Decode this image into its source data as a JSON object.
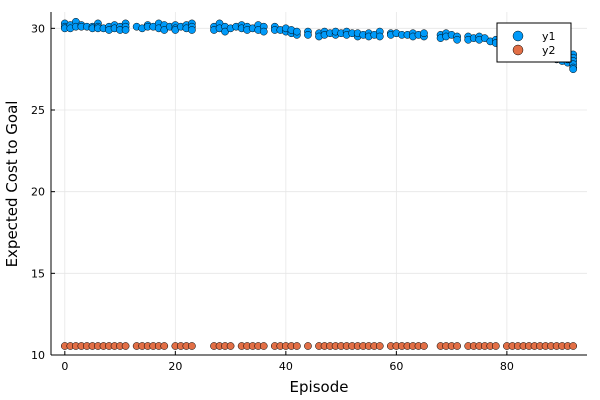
{
  "chart_data": {
    "type": "scatter",
    "xlabel": "Episode",
    "ylabel": "Expected Cost to Goal",
    "xlim": [
      -2.5,
      94.5
    ],
    "ylim": [
      10,
      31
    ],
    "xticks": [
      0,
      20,
      40,
      60,
      80
    ],
    "yticks": [
      10,
      15,
      20,
      25,
      30
    ],
    "grid": true,
    "legend_position": "top-right",
    "series": [
      {
        "name": "y1",
        "color": "#009af9",
        "points": [
          [
            0,
            30.3
          ],
          [
            0,
            30.1
          ],
          [
            0,
            30.0
          ],
          [
            1,
            30.2
          ],
          [
            1,
            30.0
          ],
          [
            2,
            30.4
          ],
          [
            2,
            30.1
          ],
          [
            3,
            30.2
          ],
          [
            3,
            30.1
          ],
          [
            4,
            30.1
          ],
          [
            5,
            30.1
          ],
          [
            5,
            30.0
          ],
          [
            6,
            30.3
          ],
          [
            6,
            30.1
          ],
          [
            6,
            30.0
          ],
          [
            7,
            30.0
          ],
          [
            8,
            30.1
          ],
          [
            8,
            29.9
          ],
          [
            9,
            30.2
          ],
          [
            9,
            30.0
          ],
          [
            10,
            30.1
          ],
          [
            10,
            29.9
          ],
          [
            11,
            30.3
          ],
          [
            11,
            30.1
          ],
          [
            11,
            29.9
          ],
          [
            13,
            30.1
          ],
          [
            14,
            30.0
          ],
          [
            15,
            30.2
          ],
          [
            15,
            30.1
          ],
          [
            16,
            30.1
          ],
          [
            17,
            30.3
          ],
          [
            17,
            30.0
          ],
          [
            18,
            30.2
          ],
          [
            18,
            29.9
          ],
          [
            19,
            30.1
          ],
          [
            20,
            30.2
          ],
          [
            20,
            30.0
          ],
          [
            20,
            29.9
          ],
          [
            21,
            30.1
          ],
          [
            22,
            30.2
          ],
          [
            22,
            30.0
          ],
          [
            23,
            30.3
          ],
          [
            23,
            30.1
          ],
          [
            23,
            29.9
          ],
          [
            27,
            30.1
          ],
          [
            27,
            29.9
          ],
          [
            28,
            30.3
          ],
          [
            28,
            30.0
          ],
          [
            29,
            30.1
          ],
          [
            29,
            29.8
          ],
          [
            30,
            30.0
          ],
          [
            31,
            30.1
          ],
          [
            32,
            30.2
          ],
          [
            32,
            30.0
          ],
          [
            33,
            30.1
          ],
          [
            33,
            29.9
          ],
          [
            34,
            30.0
          ],
          [
            35,
            30.2
          ],
          [
            35,
            29.9
          ],
          [
            36,
            30.1
          ],
          [
            36,
            29.8
          ],
          [
            38,
            30.1
          ],
          [
            38,
            29.9
          ],
          [
            39,
            29.9
          ],
          [
            40,
            29.8
          ],
          [
            40,
            30.0
          ],
          [
            41,
            29.7
          ],
          [
            41,
            29.9
          ],
          [
            42,
            29.6
          ],
          [
            42,
            29.8
          ],
          [
            44,
            29.8
          ],
          [
            44,
            29.6
          ],
          [
            46,
            29.7
          ],
          [
            46,
            29.5
          ],
          [
            47,
            29.8
          ],
          [
            47,
            29.6
          ],
          [
            48,
            29.7
          ],
          [
            49,
            29.6
          ],
          [
            49,
            29.8
          ],
          [
            50,
            29.7
          ],
          [
            51,
            29.8
          ],
          [
            51,
            29.6
          ],
          [
            52,
            29.7
          ],
          [
            53,
            29.5
          ],
          [
            53,
            29.7
          ],
          [
            54,
            29.6
          ],
          [
            55,
            29.7
          ],
          [
            55,
            29.5
          ],
          [
            56,
            29.6
          ],
          [
            57,
            29.8
          ],
          [
            57,
            29.5
          ],
          [
            59,
            29.7
          ],
          [
            59,
            29.6
          ],
          [
            60,
            29.7
          ],
          [
            61,
            29.6
          ],
          [
            62,
            29.6
          ],
          [
            63,
            29.7
          ],
          [
            63,
            29.5
          ],
          [
            64,
            29.6
          ],
          [
            65,
            29.5
          ],
          [
            65,
            29.7
          ],
          [
            68,
            29.6
          ],
          [
            68,
            29.4
          ],
          [
            69,
            29.7
          ],
          [
            69,
            29.5
          ],
          [
            70,
            29.6
          ],
          [
            71,
            29.5
          ],
          [
            71,
            29.3
          ],
          [
            73,
            29.5
          ],
          [
            73,
            29.3
          ],
          [
            74,
            29.4
          ],
          [
            75,
            29.5
          ],
          [
            75,
            29.3
          ],
          [
            76,
            29.4
          ],
          [
            77,
            29.2
          ],
          [
            78,
            29.3
          ],
          [
            78,
            29.1
          ],
          [
            79,
            29.2
          ],
          [
            80,
            29.1
          ],
          [
            80,
            28.9
          ],
          [
            81,
            29.0
          ],
          [
            82,
            28.8
          ],
          [
            82,
            29.0
          ],
          [
            83,
            28.7
          ],
          [
            84,
            28.8
          ],
          [
            84,
            28.6
          ],
          [
            85,
            28.5
          ],
          [
            86,
            28.6
          ],
          [
            86,
            28.4
          ],
          [
            87,
            28.3
          ],
          [
            88,
            28.2
          ],
          [
            88,
            28.4
          ],
          [
            89,
            28.1
          ],
          [
            90,
            28.2
          ],
          [
            90,
            28.0
          ],
          [
            91,
            27.9
          ],
          [
            91,
            28.1
          ],
          [
            92,
            28.4
          ],
          [
            92,
            28.2
          ],
          [
            92,
            28.0
          ],
          [
            92,
            27.8
          ],
          [
            92,
            27.6
          ],
          [
            92,
            27.5
          ]
        ]
      },
      {
        "name": "y2",
        "color": "#e26f46",
        "x": [
          0,
          1,
          2,
          3,
          4,
          5,
          6,
          7,
          8,
          9,
          10,
          11,
          13,
          14,
          15,
          16,
          17,
          18,
          20,
          21,
          22,
          23,
          27,
          28,
          29,
          30,
          32,
          33,
          34,
          35,
          36,
          38,
          39,
          40,
          41,
          42,
          44,
          46,
          47,
          48,
          49,
          50,
          51,
          52,
          53,
          54,
          55,
          56,
          57,
          59,
          60,
          61,
          62,
          63,
          64,
          65,
          68,
          69,
          70,
          71,
          73,
          74,
          75,
          76,
          77,
          78,
          80,
          81,
          82,
          83,
          84,
          85,
          86,
          87,
          88,
          89,
          90,
          91,
          92
        ],
        "y": 10.55
      }
    ]
  }
}
